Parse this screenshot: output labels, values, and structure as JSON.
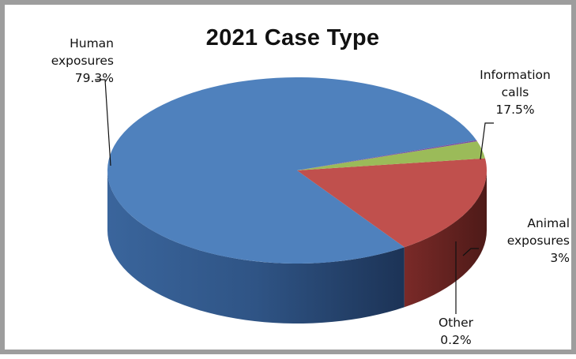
{
  "chart_data": {
    "type": "pie",
    "title": "2021 Case Type",
    "three_d": true,
    "categories": [
      "Human exposures",
      "Information calls",
      "Animal exposures",
      "Other"
    ],
    "values": [
      79.3,
      17.5,
      3,
      0.2
    ],
    "value_labels": [
      "79.3%",
      "17.5%",
      "3%",
      "0.2%"
    ],
    "label_lines": [
      [
        "Human",
        "exposures",
        "79.3%"
      ],
      [
        "Information",
        "calls",
        "17.5%"
      ],
      [
        "Animal",
        "exposures",
        "3%"
      ],
      [
        "Other",
        "0.2%"
      ]
    ],
    "colors": [
      "#4f81bd",
      "#c0504d",
      "#9bbb59",
      "#7b4fa0"
    ],
    "legend": "none"
  }
}
